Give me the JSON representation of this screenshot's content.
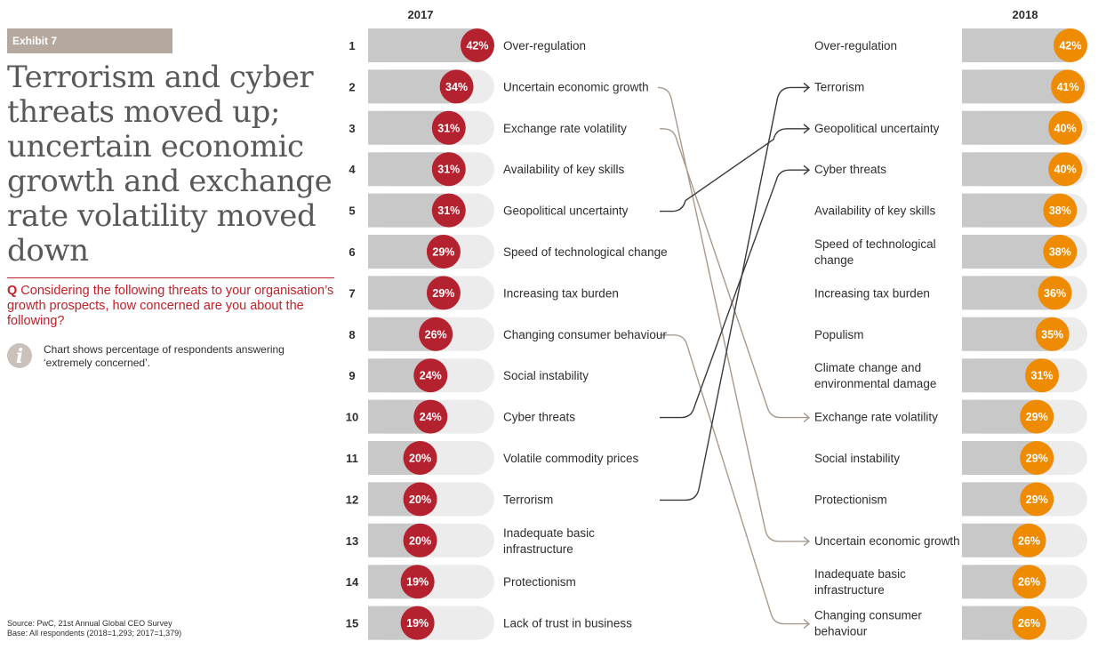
{
  "exhibit_label": "Exhibit 7",
  "title": "Terrorism and cyber threats moved up; uncertain economic growth and exchange rate volatility moved down",
  "question": {
    "prefix": "Q",
    "text": " Considering the following threats to your organisation’s growth prospects, how concerned are you about the following?"
  },
  "info_note": "Chart shows percentage of respondents answering ‘extremely concerned’.",
  "source_lines": [
    "Source: PwC, 21st Annual Global CEO Survey",
    "Base: All respondents (2018=1,293; 2017=1,379)"
  ],
  "colors": {
    "series_2017": "#b5222f",
    "series_2018": "#ef8b00",
    "track": "#ececec",
    "fill": "#c8c8c8",
    "connector_dark": "#3a3a3a",
    "connector_light": "#a8998e",
    "accent": "#c22127"
  },
  "chart_data": {
    "type": "slope-ranking",
    "value_max": 42,
    "columns": [
      {
        "name": "2017",
        "rows": [
          {
            "rank": "1",
            "label": "Over-regulation",
            "value": 42,
            "value_label": "42%"
          },
          {
            "rank": "2",
            "label": "Uncertain economic growth",
            "value": 34,
            "value_label": "34%"
          },
          {
            "rank": "3",
            "label": "Exchange rate volatility",
            "value": 31,
            "value_label": "31%"
          },
          {
            "rank": "4",
            "label": "Availability of key skills",
            "value": 31,
            "value_label": "31%"
          },
          {
            "rank": "5",
            "label": "Geopolitical uncertainty",
            "value": 31,
            "value_label": "31%"
          },
          {
            "rank": "6",
            "label": "Speed of technological change",
            "value": 29,
            "value_label": "29%"
          },
          {
            "rank": "7",
            "label": "Increasing tax burden",
            "value": 29,
            "value_label": "29%"
          },
          {
            "rank": "8",
            "label": "Changing consumer behaviour",
            "value": 26,
            "value_label": "26%"
          },
          {
            "rank": "9",
            "label": "Social instability",
            "value": 24,
            "value_label": "24%"
          },
          {
            "rank": "10",
            "label": "Cyber threats",
            "value": 24,
            "value_label": "24%"
          },
          {
            "rank": "11",
            "label": "Volatile commodity prices",
            "value": 20,
            "value_label": "20%"
          },
          {
            "rank": "12",
            "label": "Terrorism",
            "value": 20,
            "value_label": "20%"
          },
          {
            "rank": "13",
            "label": [
              "Inadequate basic",
              "infrastructure"
            ],
            "value": 20,
            "value_label": "20%"
          },
          {
            "rank": "14",
            "label": "Protectionism",
            "value": 19,
            "value_label": "19%"
          },
          {
            "rank": "15",
            "label": "Lack of trust in business",
            "value": 19,
            "value_label": "19%"
          }
        ]
      },
      {
        "name": "2018",
        "rows": [
          {
            "label": "Over-regulation",
            "value": 42,
            "value_label": "42%"
          },
          {
            "label": "Terrorism",
            "value": 41,
            "value_label": "41%"
          },
          {
            "label": "Geopolitical uncertainty",
            "value": 40,
            "value_label": "40%"
          },
          {
            "label": "Cyber threats",
            "value": 40,
            "value_label": "40%"
          },
          {
            "label": "Availability of key skills",
            "value": 38,
            "value_label": "38%"
          },
          {
            "label": [
              "Speed of technological",
              "change"
            ],
            "value": 38,
            "value_label": "38%"
          },
          {
            "label": "Increasing tax burden",
            "value": 36,
            "value_label": "36%"
          },
          {
            "label": "Populism",
            "value": 35,
            "value_label": "35%"
          },
          {
            "label": [
              "Climate change and",
              "environmental damage"
            ],
            "value": 31,
            "value_label": "31%"
          },
          {
            "label": "Exchange rate volatility",
            "value": 29,
            "value_label": "29%"
          },
          {
            "label": "Social instability",
            "value": 29,
            "value_label": "29%"
          },
          {
            "label": "Protectionism",
            "value": 29,
            "value_label": "29%"
          },
          {
            "label": "Uncertain economic growth",
            "value": 26,
            "value_label": "26%"
          },
          {
            "label": [
              "Inadequate basic",
              "infrastructure"
            ],
            "value": 26,
            "value_label": "26%"
          },
          {
            "label": [
              "Changing consumer",
              "behaviour"
            ],
            "value": 26,
            "value_label": "26%"
          }
        ]
      }
    ],
    "connectors": [
      {
        "from_rank": 2,
        "to_rank": 13,
        "direction": "down"
      },
      {
        "from_rank": 3,
        "to_rank": 10,
        "direction": "down"
      },
      {
        "from_rank": 5,
        "to_rank": 3,
        "direction": "up"
      },
      {
        "from_rank": 8,
        "to_rank": 15,
        "direction": "down"
      },
      {
        "from_rank": 10,
        "to_rank": 4,
        "direction": "up"
      },
      {
        "from_rank": 12,
        "to_rank": 2,
        "direction": "up"
      }
    ]
  }
}
